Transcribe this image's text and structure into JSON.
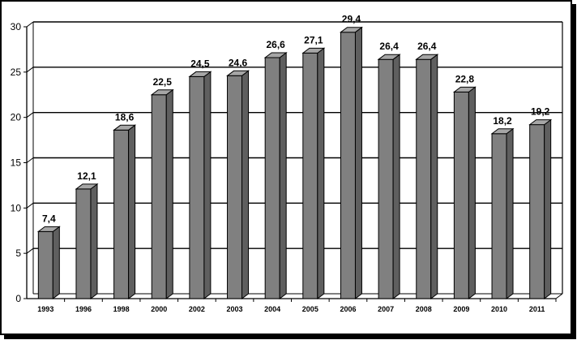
{
  "chart_data": {
    "type": "bar",
    "categories": [
      "1993",
      "1996",
      "1998",
      "2000",
      "2002",
      "2003",
      "2004",
      "2005",
      "2006",
      "2007",
      "2008",
      "2009",
      "2010",
      "2011"
    ],
    "values": [
      7.4,
      12.1,
      18.6,
      22.5,
      24.5,
      24.6,
      26.6,
      27.1,
      29.4,
      26.4,
      26.4,
      22.8,
      18.2,
      19.2
    ],
    "data_labels": [
      "7,4",
      "12,1",
      "18,6",
      "22,5",
      "24,5",
      "24,6",
      "26,6",
      "27,1",
      "29,4",
      "26,4",
      "26,4",
      "22,8",
      "18,2",
      "19,2"
    ],
    "title": "",
    "xlabel": "",
    "ylabel": "",
    "ylim": [
      0,
      30
    ],
    "yticks": [
      0,
      5,
      10,
      15,
      20,
      25,
      30
    ],
    "grid": true,
    "bar_style": "3d",
    "colors": {
      "bar_front": "#808080",
      "bar_side": "#5f5f5f",
      "bar_top": "#a6a6a6",
      "bar_outline": "#000000",
      "grid": "#000000"
    }
  }
}
